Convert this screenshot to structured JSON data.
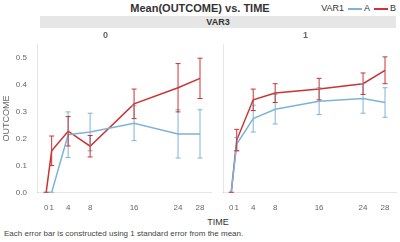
{
  "chart_data": {
    "type": "line",
    "title": "Mean(OUTCOME) vs. TIME",
    "subtitle": "VAR3",
    "xlabel": "TIME",
    "ylabel": "OUTCOME",
    "legend_title": "VAR1",
    "annotations": [
      "Each error bar is constructed using 1 standard error from the mean."
    ],
    "x": [
      0,
      1,
      4,
      8,
      16,
      24,
      28
    ],
    "xlim": [
      -1.5,
      30
    ],
    "xticks": [
      0,
      1,
      4,
      8,
      16,
      24,
      28
    ],
    "ylim": [
      0,
      0.55
    ],
    "yticks": [
      {
        "value": 0,
        "label": "0.0"
      },
      0.1,
      0.2,
      0.3,
      0.4,
      0.5
    ],
    "grid": false,
    "marker": "none",
    "panels": [
      {
        "title": "0",
        "series": [
          {
            "name": "A",
            "color": "#7EB3D8",
            "values": [
              0.0,
              0.0,
              0.215,
              0.225,
              0.258,
              0.218,
              0.218
            ],
            "errors": [
              0.0,
              0.0,
              0.085,
              0.07,
              0.065,
              0.09,
              0.09
            ]
          },
          {
            "name": "B",
            "color": "#CC3333",
            "values": [
              0.0,
              0.155,
              0.228,
              0.172,
              0.33,
              0.39,
              0.425
            ],
            "errors": [
              0.0,
              0.055,
              0.055,
              0.04,
              0.055,
              0.09,
              0.075
            ]
          }
        ]
      },
      {
        "title": "1",
        "tick_labels": "x",
        "series": [
          {
            "name": "A",
            "color": "#7EB3D8",
            "values": [
              0.0,
              0.18,
              0.275,
              0.31,
              0.34,
              0.35,
              0.335
            ],
            "errors": [
              0.0,
              0.025,
              0.05,
              0.055,
              0.05,
              0.055,
              0.055
            ]
          },
          {
            "name": "B",
            "color": "#CC3333",
            "values": [
              0.0,
              0.195,
              0.345,
              0.37,
              0.385,
              0.405,
              0.455
            ],
            "errors": [
              0.0,
              0.04,
              0.04,
              0.035,
              0.04,
              0.04,
              0.05
            ]
          }
        ]
      }
    ]
  }
}
